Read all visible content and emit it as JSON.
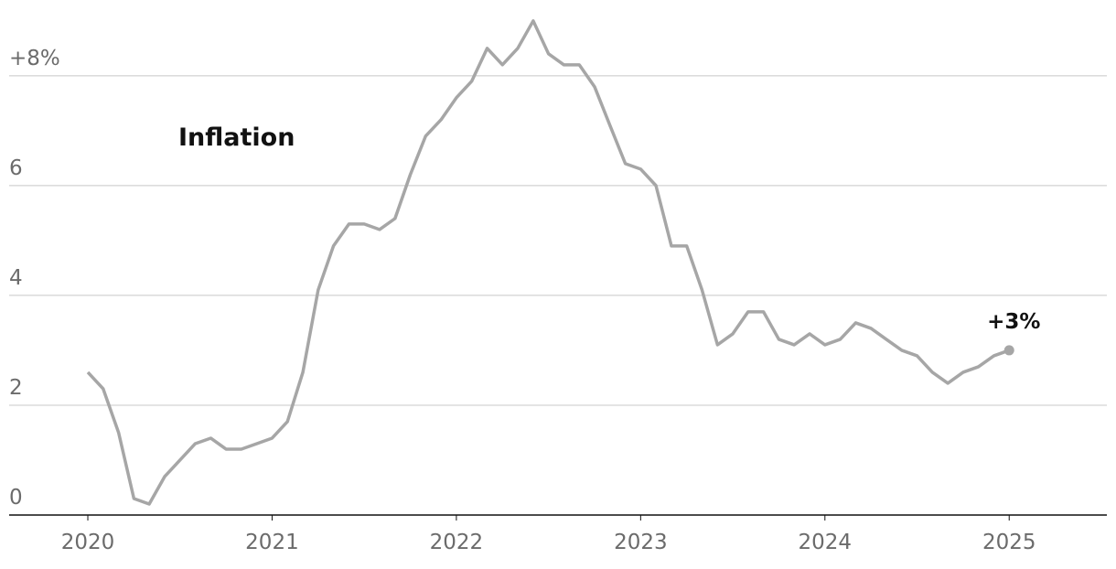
{
  "chart_data": {
    "type": "line",
    "title": "Inflation",
    "annotation": "+3%",
    "x": [
      2020,
      2020.083,
      2020.167,
      2020.25,
      2020.333,
      2020.417,
      2020.5,
      2020.583,
      2020.667,
      2020.75,
      2020.833,
      2020.917,
      2021,
      2021.083,
      2021.167,
      2021.25,
      2021.333,
      2021.417,
      2021.5,
      2021.583,
      2021.667,
      2021.75,
      2021.833,
      2021.917,
      2022,
      2022.083,
      2022.167,
      2022.25,
      2022.333,
      2022.417,
      2022.5,
      2022.583,
      2022.667,
      2022.75,
      2022.833,
      2022.917,
      2023,
      2023.083,
      2023.167,
      2023.25,
      2023.333,
      2023.417,
      2023.5,
      2023.583,
      2023.667,
      2023.75,
      2023.833,
      2023.917,
      2024,
      2024.083,
      2024.167,
      2024.25,
      2024.333,
      2024.417,
      2024.5,
      2024.583,
      2024.667,
      2024.75,
      2024.833,
      2024.917,
      2025
    ],
    "series": [
      {
        "color": "#a6a6a6",
        "values": [
          2.6,
          2.3,
          1.5,
          0.3,
          0.2,
          0.7,
          1.0,
          1.3,
          1.4,
          1.2,
          1.2,
          1.3,
          1.4,
          1.7,
          2.6,
          4.1,
          4.9,
          5.3,
          5.3,
          5.2,
          5.4,
          6.2,
          6.9,
          7.2,
          7.6,
          7.9,
          8.5,
          8.2,
          8.5,
          9.0,
          8.4,
          8.2,
          8.2,
          7.8,
          7.1,
          6.4,
          6.3,
          6.0,
          4.9,
          4.9,
          4.1,
          3.1,
          3.3,
          3.7,
          3.7,
          3.2,
          3.1,
          3.3,
          3.1,
          3.2,
          3.5,
          3.4,
          3.2,
          3.0,
          2.9,
          2.6,
          2.4,
          2.6,
          2.7,
          2.9,
          3.0
        ]
      }
    ],
    "xlim": [
      2019.573,
      2025.53
    ],
    "xticks": [
      2020,
      2021,
      2022,
      2023,
      2024,
      2025
    ],
    "ylim": [
      0,
      9.38
    ],
    "yticks": [
      0,
      2,
      4,
      6,
      {
        "value": 8,
        "label": "+8%"
      }
    ],
    "grid": true
  }
}
